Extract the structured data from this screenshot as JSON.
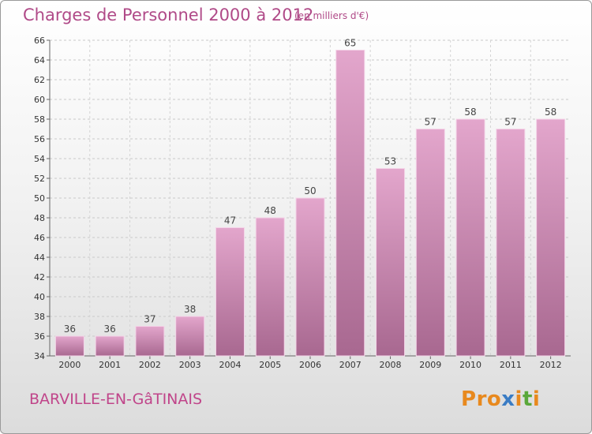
{
  "header": {
    "title": "Charges de Personnel 2000 à 2012",
    "subtitle": "(en milliers d'€)"
  },
  "footer": {
    "commune": "BARVILLE-EN-GâTINAIS",
    "logo_text": "Proxiti",
    "logo_colors": [
      "#e8891e",
      "#e8891e",
      "#e8891e",
      "#3a7cc4",
      "#e8891e",
      "#5aa83a",
      "#e8891e"
    ]
  },
  "colors": {
    "title": "#b04a88",
    "bar_top": "#e3a6cc",
    "bar_bottom": "#a86890",
    "bar_edge": "#f4d4e8"
  },
  "chart_data": {
    "type": "bar",
    "categories": [
      "2000",
      "2001",
      "2002",
      "2003",
      "2004",
      "2005",
      "2006",
      "2007",
      "2008",
      "2009",
      "2010",
      "2011",
      "2012"
    ],
    "values": [
      36,
      36,
      37,
      38,
      47,
      48,
      50,
      65,
      53,
      57,
      58,
      57,
      58
    ],
    "ylim": [
      34,
      66
    ],
    "yticks": [
      34,
      36,
      38,
      40,
      42,
      44,
      46,
      48,
      50,
      52,
      54,
      56,
      58,
      60,
      62,
      64,
      66
    ],
    "grid": true,
    "data_labels": true
  }
}
